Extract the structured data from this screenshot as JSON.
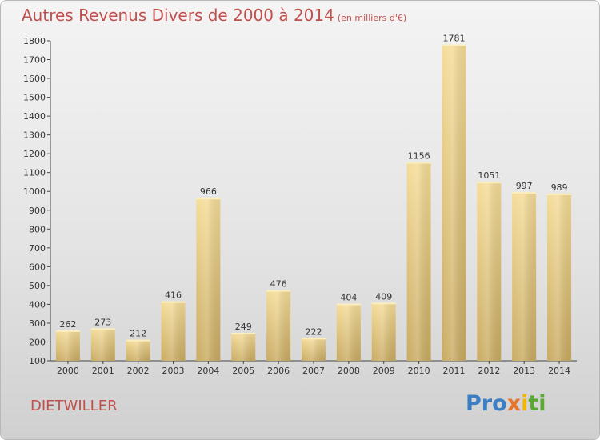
{
  "title": "Autres Revenus Divers de 2000 à 2014",
  "unit": "(en milliers d'€)",
  "commune": "DIETWILLER",
  "logo": {
    "letters": [
      {
        "char": "P",
        "color": "#3a7fc4"
      },
      {
        "char": "r",
        "color": "#3a7fc4"
      },
      {
        "char": "o",
        "color": "#3a7fc4"
      },
      {
        "char": "x",
        "color": "#e8732a"
      },
      {
        "char": "i",
        "color": "#f2b705"
      },
      {
        "char": "t",
        "color": "#5aa832"
      },
      {
        "char": "i",
        "color": "#5aa832"
      }
    ]
  },
  "chart_data": {
    "type": "bar",
    "categories": [
      "2000",
      "2001",
      "2002",
      "2003",
      "2004",
      "2005",
      "2006",
      "2007",
      "2008",
      "2009",
      "2010",
      "2011",
      "2012",
      "2013",
      "2014"
    ],
    "values": [
      262,
      273,
      212,
      416,
      966,
      249,
      476,
      222,
      404,
      409,
      1156,
      1781,
      1051,
      997,
      989
    ],
    "title": "Autres Revenus Divers de 2000 à 2014",
    "xlabel": "",
    "ylabel": "",
    "ylim": [
      100,
      1800
    ],
    "yticks": [
      100,
      200,
      300,
      400,
      500,
      600,
      700,
      800,
      900,
      1000,
      1100,
      1200,
      1300,
      1400,
      1500,
      1600,
      1700,
      1800
    ],
    "grid": false,
    "data_labels": true,
    "bar_color": "#e3c47e"
  }
}
